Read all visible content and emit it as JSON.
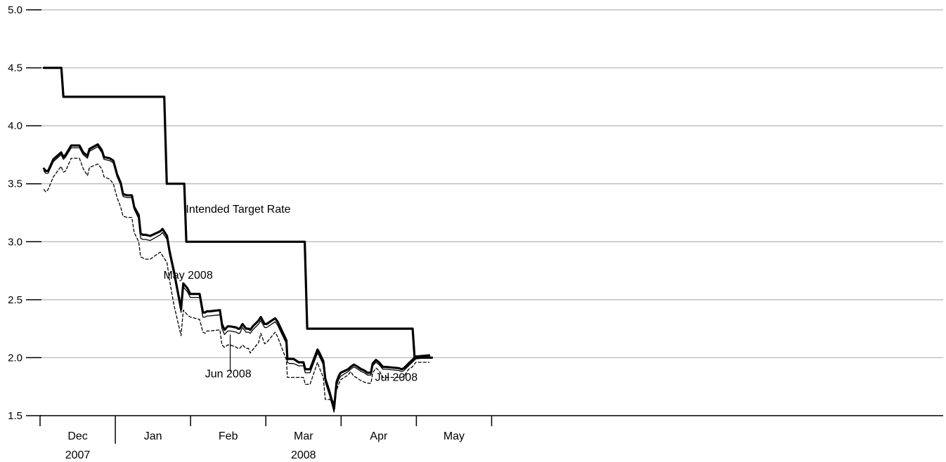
{
  "chart_data": {
    "type": "line",
    "title": "",
    "xlabel": "",
    "ylabel": "",
    "ylim": [
      1.5,
      5.0
    ],
    "y_ticks": [
      "1.5",
      "2.0",
      "2.5",
      "3.0",
      "3.5",
      "4.0",
      "4.5",
      "5.0"
    ],
    "grid": true,
    "x_range_days": [
      0,
      360
    ],
    "months": [
      {
        "label": "Dec",
        "start": 0,
        "end": 30
      },
      {
        "label": "Jan",
        "start": 30,
        "end": 60
      },
      {
        "label": "Feb",
        "start": 60,
        "end": 90
      },
      {
        "label": "Mar",
        "start": 90,
        "end": 120
      },
      {
        "label": "Apr",
        "start": 120,
        "end": 150
      },
      {
        "label": "May",
        "start": 150,
        "end": 180
      }
    ],
    "years": [
      {
        "label": "2007",
        "month_index": 0
      },
      {
        "label": "2008",
        "month_index": 3
      }
    ],
    "annotations": [
      {
        "text": "Intended Target Rate",
        "x": 79,
        "y": 3.25
      },
      {
        "text": "May 2008",
        "x": 59,
        "y": 2.68
      },
      {
        "text": "Jun 2008",
        "x": 75,
        "y": 1.83
      },
      {
        "text": "Jul 2008",
        "x": 142,
        "y": 1.8
      }
    ],
    "series": [
      {
        "name": "Intended Target Rate",
        "style": "step",
        "x": [
          1.5,
          8.5,
          9.3,
          49.5,
          50.5,
          57.5,
          58.3,
          105.5,
          106.5,
          148.5,
          149.3,
          156.2
        ],
        "y": [
          4.5,
          4.5,
          4.25,
          4.25,
          3.5,
          3.5,
          3.0,
          3.0,
          2.25,
          2.25,
          2.0,
          2.0
        ]
      },
      {
        "name": "May 2008",
        "style": "thick",
        "x": [
          1.5,
          2.3,
          3.2,
          5.3,
          8.4,
          9.3,
          10.2,
          12.4,
          15.7,
          17.2,
          18.9,
          19.7,
          23.0,
          24.6,
          25.5,
          27.7,
          29.2,
          30.7,
          32.1,
          33.1,
          34.8,
          36.6,
          37.5,
          39.3,
          40.1,
          41.0,
          42.1,
          43.9,
          47.9,
          48.8,
          50.6,
          51.6,
          53.3,
          56.2,
          57.1,
          58.7,
          59.9,
          63.6,
          64.9,
          65.8,
          66.5,
          67.6,
          71.7,
          72.5,
          73.5,
          74.8,
          75.8,
          78.3,
          78.8,
          79.6,
          80.7,
          82.1,
          83.1,
          83.8,
          84.8,
          87.1,
          88.0,
          89.5,
          90.3,
          93.7,
          94.7,
          98.2,
          98.6,
          99.4,
          99.9,
          101.0,
          103.1,
          104.4,
          105.0,
          105.7,
          106.3,
          107.6,
          110.6,
          111.4,
          112.9,
          113.7,
          115.3,
          117.2,
          118.2,
          119.0,
          119.8,
          122.8,
          123.8,
          125.1,
          126.0,
          128.1,
          129.2,
          130.5,
          131.9,
          132.6,
          133.9,
          135.1,
          136.7,
          137.8,
          142.9,
          144.1,
          145.1,
          146.9,
          148.4,
          149.8,
          155.1
        ],
        "y": [
          3.63,
          3.61,
          3.61,
          3.71,
          3.77,
          3.73,
          3.75,
          3.83,
          3.83,
          3.77,
          3.74,
          3.8,
          3.84,
          3.79,
          3.73,
          3.72,
          3.7,
          3.58,
          3.51,
          3.41,
          3.4,
          3.4,
          3.3,
          3.23,
          3.07,
          3.06,
          3.06,
          3.05,
          3.09,
          3.11,
          3.05,
          2.92,
          2.75,
          2.42,
          2.64,
          2.6,
          2.55,
          2.55,
          2.39,
          2.39,
          2.4,
          2.4,
          2.41,
          2.29,
          2.24,
          2.27,
          2.27,
          2.26,
          2.25,
          2.25,
          2.29,
          2.25,
          2.25,
          2.24,
          2.27,
          2.32,
          2.35,
          2.29,
          2.29,
          2.34,
          2.31,
          2.15,
          1.99,
          1.99,
          1.99,
          1.99,
          1.96,
          1.96,
          1.96,
          1.9,
          1.9,
          1.9,
          2.07,
          2.04,
          1.97,
          1.82,
          1.71,
          1.56,
          1.79,
          1.84,
          1.87,
          1.9,
          1.92,
          1.94,
          1.93,
          1.9,
          1.89,
          1.87,
          1.87,
          1.95,
          1.98,
          1.96,
          1.92,
          1.92,
          1.91,
          1.9,
          1.91,
          1.95,
          1.98,
          2.01,
          2.02
        ],
        "offset": 0.0
      },
      {
        "name": "Jun 2008",
        "style": "thin",
        "x": [
          1.5,
          2.3,
          3.2,
          5.3,
          8.4,
          9.3,
          10.2,
          12.4,
          15.7,
          17.2,
          18.9,
          19.7,
          23.0,
          24.6,
          25.5,
          27.7,
          29.2,
          30.7,
          32.1,
          33.1,
          34.8,
          36.6,
          37.5,
          39.3,
          40.1,
          41.0,
          42.1,
          43.9,
          47.9,
          48.8,
          50.6,
          51.6,
          53.3,
          56.2,
          57.1,
          58.7,
          59.9,
          63.6,
          64.9,
          65.8,
          66.5,
          67.6,
          71.7,
          72.5,
          73.5,
          74.8,
          75.8,
          78.3,
          78.8,
          79.6,
          80.7,
          82.1,
          83.1,
          83.8,
          84.8,
          87.1,
          88.0,
          89.5,
          90.3,
          93.7,
          94.7,
          98.2,
          98.6,
          99.4,
          99.9,
          101.0,
          103.1,
          104.4,
          105.0,
          105.7,
          106.3,
          107.6,
          110.6,
          111.4,
          112.9,
          113.7,
          115.3,
          117.2,
          118.2,
          119.0,
          119.8,
          122.8,
          123.8,
          125.1,
          126.0,
          128.1,
          129.2,
          130.5,
          131.9,
          132.6,
          133.9,
          135.1,
          136.7,
          137.8,
          142.9,
          144.1,
          145.1,
          146.9,
          148.4,
          149.8,
          155.1
        ],
        "y": [
          3.61,
          3.59,
          3.59,
          3.69,
          3.75,
          3.71,
          3.73,
          3.81,
          3.81,
          3.75,
          3.72,
          3.78,
          3.82,
          3.77,
          3.71,
          3.7,
          3.68,
          3.56,
          3.49,
          3.39,
          3.38,
          3.38,
          3.28,
          3.2,
          3.03,
          3.02,
          3.02,
          3.01,
          3.06,
          3.08,
          3.02,
          2.89,
          2.72,
          2.39,
          2.61,
          2.57,
          2.52,
          2.52,
          2.35,
          2.35,
          2.36,
          2.36,
          2.37,
          2.25,
          2.2,
          2.23,
          2.23,
          2.22,
          2.21,
          2.21,
          2.26,
          2.22,
          2.22,
          2.21,
          2.24,
          2.29,
          2.32,
          2.26,
          2.26,
          2.31,
          2.28,
          2.12,
          1.96,
          1.95,
          1.95,
          1.95,
          1.93,
          1.93,
          1.93,
          1.87,
          1.87,
          1.87,
          2.04,
          2.01,
          1.94,
          1.79,
          1.68,
          1.53,
          1.76,
          1.81,
          1.84,
          1.88,
          1.9,
          1.92,
          1.91,
          1.88,
          1.87,
          1.85,
          1.85,
          1.93,
          1.96,
          1.94,
          1.9,
          1.9,
          1.89,
          1.88,
          1.89,
          1.93,
          1.96,
          1.99,
          2.0
        ],
        "offset": -0.02
      },
      {
        "name": "Jul 2008",
        "style": "dashed",
        "x": [
          1.5,
          2.3,
          3.2,
          5.3,
          8.4,
          9.3,
          10.2,
          12.4,
          15.7,
          17.2,
          18.9,
          19.7,
          23.0,
          24.6,
          25.5,
          27.7,
          29.2,
          30.7,
          32.1,
          33.1,
          34.8,
          36.6,
          37.5,
          39.3,
          40.1,
          41.0,
          42.1,
          43.9,
          47.9,
          48.8,
          50.6,
          51.6,
          53.3,
          56.2,
          57.1,
          58.7,
          59.9,
          63.6,
          64.9,
          65.8,
          66.5,
          67.6,
          71.7,
          72.5,
          73.5,
          74.8,
          75.8,
          78.3,
          78.8,
          79.6,
          80.7,
          82.1,
          83.1,
          83.8,
          84.8,
          87.1,
          88.0,
          89.5,
          90.3,
          93.7,
          94.7,
          98.2,
          98.6,
          99.4,
          99.9,
          101.0,
          103.1,
          104.4,
          105.0,
          105.7,
          106.3,
          107.6,
          110.6,
          111.4,
          112.9,
          113.7,
          115.3,
          117.2,
          118.2,
          119.0,
          119.8,
          122.8,
          123.8,
          125.1,
          126.0,
          128.1,
          129.2,
          130.5,
          131.9,
          132.6,
          133.9,
          135.1,
          136.7,
          137.8,
          142.9,
          144.1,
          145.1,
          146.9,
          148.4,
          149.8,
          155.1
        ],
        "y": [
          3.45,
          3.43,
          3.45,
          3.56,
          3.65,
          3.6,
          3.61,
          3.72,
          3.72,
          3.63,
          3.57,
          3.64,
          3.67,
          3.63,
          3.56,
          3.54,
          3.5,
          3.38,
          3.3,
          3.22,
          3.21,
          3.21,
          3.08,
          3.0,
          2.87,
          2.86,
          2.85,
          2.85,
          2.91,
          2.88,
          2.82,
          2.67,
          2.46,
          2.19,
          2.41,
          2.37,
          2.35,
          2.33,
          2.22,
          2.21,
          2.23,
          2.23,
          2.24,
          2.11,
          2.09,
          2.11,
          2.11,
          2.09,
          2.08,
          2.08,
          2.11,
          2.08,
          2.08,
          2.04,
          2.07,
          2.13,
          2.21,
          2.12,
          2.13,
          2.22,
          2.18,
          1.98,
          1.83,
          1.83,
          1.83,
          1.83,
          1.83,
          1.83,
          1.83,
          1.77,
          1.77,
          1.77,
          1.96,
          1.91,
          1.83,
          1.64,
          1.64,
          1.62,
          1.72,
          1.77,
          1.81,
          1.85,
          1.88,
          1.84,
          1.83,
          1.8,
          1.79,
          1.78,
          1.78,
          1.87,
          1.91,
          1.89,
          1.83,
          1.83,
          1.83,
          1.83,
          1.84,
          1.9,
          1.92,
          1.96,
          1.96
        ],
        "offset": -0.06
      }
    ]
  }
}
